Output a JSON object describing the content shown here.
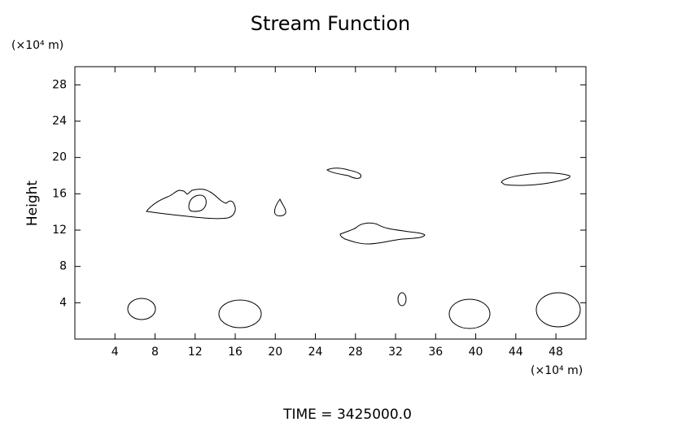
{
  "chart_data": {
    "type": "contour",
    "title": "Stream Function",
    "y_label": "Height",
    "y_unit": "(×10⁴ m)",
    "x_unit": "(×10⁴ m)",
    "footer": "TIME = 3425000.0",
    "xlim": [
      0,
      51
    ],
    "xticks": [
      4,
      8,
      12,
      16,
      20,
      24,
      28,
      32,
      36,
      40,
      44,
      48
    ],
    "ylim": [
      0,
      30
    ],
    "yticks": [
      4,
      8,
      12,
      16,
      20,
      24,
      28
    ]
  }
}
